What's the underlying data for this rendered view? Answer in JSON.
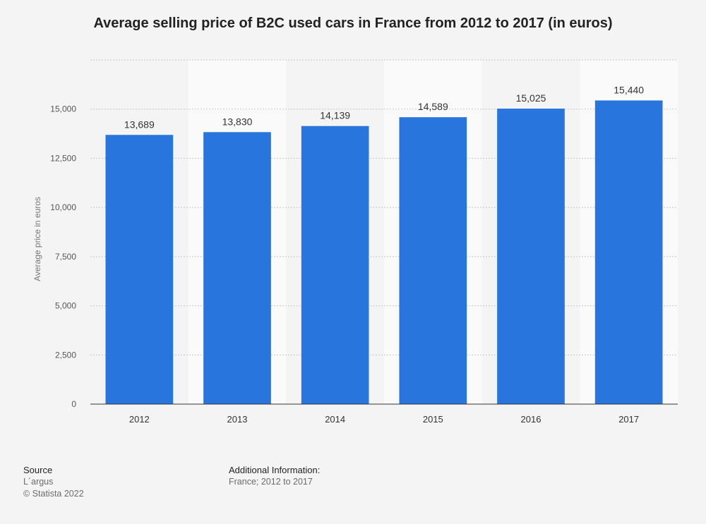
{
  "title": "Average selling price of B2C used cars in France from 2012 to 2017 (in euros)",
  "chart_data": {
    "type": "bar",
    "title": "Average selling price of B2C used cars in France from 2012 to 2017 (in euros)",
    "categories": [
      "2012",
      "2013",
      "2014",
      "2015",
      "2016",
      "2017"
    ],
    "values": [
      13689,
      13830,
      14139,
      14589,
      15025,
      15440
    ],
    "value_labels": [
      "13,689",
      "13,830",
      "14,139",
      "14,589",
      "15,025",
      "15,440"
    ],
    "ylabel": "Average price in euros",
    "xlabel": "",
    "ylim": [
      0,
      17500
    ],
    "yticks": [
      0,
      2500,
      5000,
      7500,
      10000,
      12500,
      15000
    ],
    "ytick_labels": [
      "0",
      "2,500",
      "5,000",
      "7,500",
      "10,000",
      "12,500",
      "15,000"
    ],
    "grid": true,
    "bar_color": "#2875dd"
  },
  "footer": {
    "source_heading": "Source",
    "source_lines": [
      "L´argus",
      "© Statista 2022"
    ],
    "info_heading": "Additional Information:",
    "info_text": "France; 2012 to 2017"
  }
}
